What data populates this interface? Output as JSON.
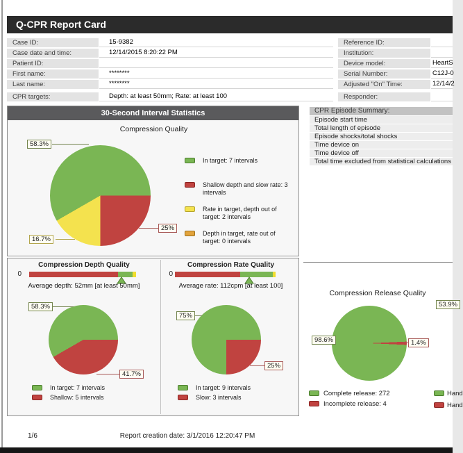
{
  "page": {
    "title": "Q-CPR Report Card",
    "footer": {
      "page_number": "1/6",
      "creation": "Report creation date: 3/1/2016 12:20:47 PM"
    }
  },
  "palette": {
    "green": "#7ab654",
    "green_dark": "#4a7c2c",
    "red": "#c04340",
    "red_dark": "#8a2422",
    "yellow": "#f4e24e",
    "yellow_dark": "#b5a42c",
    "orange": "#e2a33c",
    "orange_dark": "#9c6f1a",
    "gauge_yellow": "#f0dd2e",
    "callout_green": "#74854e",
    "callout_red": "#a85956",
    "callout_yellow": "#b3a64e",
    "header_dark": "#2b2b2b",
    "section_header": "#5a5a5c"
  },
  "case_info": {
    "left_rows": [
      {
        "label": "Case ID:",
        "value": "15-9382"
      },
      {
        "label": "Case date and time:",
        "value": "12/14/2015 8:20:22 PM"
      },
      {
        "label": "Patient ID:",
        "value": ""
      },
      {
        "label": "First name:",
        "value": "********"
      },
      {
        "label": "Last name:",
        "value": "********"
      },
      {
        "label": "CPR targets:",
        "value": "Depth: at least 50mm; Rate: at least 100"
      }
    ],
    "right_rows": [
      {
        "label": "Reference ID:",
        "value": ""
      },
      {
        "label": "Institution:",
        "value": ""
      },
      {
        "label": "Device model:",
        "value": "HeartS"
      },
      {
        "label": "Serial Number:",
        "value": "C12J-0"
      },
      {
        "label": "Adjusted \"On\" Time:",
        "value": "12/14/2"
      },
      {
        "label": "Responder:",
        "value": ""
      }
    ]
  },
  "interval_stats": {
    "header": "30-Second Interval Statistics"
  },
  "episode_summary": {
    "header": "CPR Episode Summary:",
    "rows": [
      "Episode start time",
      "Total length of episode",
      "Episode shocks/total shocks",
      "Time device on",
      "Time device off",
      "Total time excluded from statistical calculations"
    ]
  },
  "charts": {
    "compression_quality": {
      "type": "pie",
      "title": "Compression Quality",
      "start_deg": 90,
      "segments": [
        {
          "name": "shallow-and-slow",
          "pct": 25,
          "color": "#c04340"
        },
        {
          "name": "rate-in-depth-out",
          "pct": 16.7,
          "color": "#f4e24e"
        },
        {
          "name": "in-target",
          "pct": 58.3,
          "color": "#7ab654"
        }
      ],
      "callouts": [
        {
          "text": "58.3%"
        },
        {
          "text": "25%"
        },
        {
          "text": "16.7%"
        }
      ],
      "legend": [
        {
          "label": "In target: 7 intervals"
        },
        {
          "label": "Shallow depth and slow rate: 3 intervals"
        },
        {
          "label": "Rate in target, depth out of target: 2 intervals"
        },
        {
          "label": "Depth in target, rate out of target: 0 intervals"
        }
      ]
    },
    "depth_quality": {
      "type": "gauge+pie",
      "title": "Compression Depth Quality",
      "scale_start": "0",
      "gauge": {
        "red_pct": 83,
        "green_pct": 13.5,
        "yellow_pct": 3.5,
        "marker_pct": 86.5
      },
      "average": "Average depth: 52mm [at least 50mm]",
      "pie": {
        "start_deg": 90,
        "segments": [
          {
            "name": "shallow",
            "pct": 41.7,
            "color": "#c04340"
          },
          {
            "name": "in-target",
            "pct": 58.3,
            "color": "#7ab654"
          }
        ]
      },
      "callouts": [
        {
          "text": "58.3%"
        },
        {
          "text": "41.7%"
        }
      ],
      "legend": [
        {
          "label": "In target: 7 intervals"
        },
        {
          "label": "Shallow: 5 intervals"
        }
      ]
    },
    "rate_quality": {
      "type": "gauge+pie",
      "title": "Compression Rate Quality",
      "scale_start": "0",
      "gauge": {
        "red_pct": 65,
        "green_pct": 32,
        "yellow_pct": 3,
        "marker_pct": 74
      },
      "average": "Average rate: 112cpm [at least 100]",
      "pie": {
        "start_deg": 90,
        "segments": [
          {
            "name": "slow",
            "pct": 25,
            "color": "#c04340"
          },
          {
            "name": "in-target",
            "pct": 75,
            "color": "#7ab654"
          }
        ]
      },
      "callouts": [
        {
          "text": "75%"
        },
        {
          "text": "25%"
        }
      ],
      "legend": [
        {
          "label": "In target: 9 intervals"
        },
        {
          "label": "Slow: 3 intervals"
        }
      ]
    },
    "release_quality": {
      "type": "pie",
      "title": "Compression Release Quality",
      "pie": {
        "start_deg": 87.5,
        "segments": [
          {
            "name": "incomplete",
            "pct": 1.4,
            "color": "#c04340"
          },
          {
            "name": "complete",
            "pct": 98.6,
            "color": "#7ab654"
          }
        ]
      },
      "callouts": [
        {
          "text": "98.6%"
        },
        {
          "text": "1.4%"
        }
      ],
      "legend": [
        {
          "label": "Complete release: 272"
        },
        {
          "label": "Incomplete release: 4"
        }
      ]
    },
    "partial_chart": {
      "callout": "53.9%",
      "legend": [
        {
          "label": "Hand"
        },
        {
          "label": "Hand"
        }
      ]
    }
  }
}
